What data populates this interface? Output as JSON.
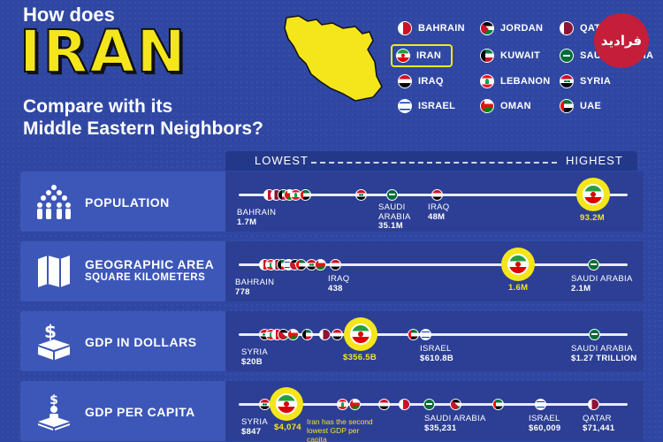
{
  "title": {
    "line1": "How does",
    "big": "IRAN",
    "line3": "Compare with its",
    "line4": "Middle Eastern Neighbors?"
  },
  "logo_text": "فرادید",
  "legend": [
    {
      "name": "BAHRAIN",
      "flag": "f-bahrain"
    },
    {
      "name": "JORDAN",
      "flag": "f-jordan"
    },
    {
      "name": "QATAR",
      "flag": "f-qatar"
    },
    {
      "name": "IRAN",
      "flag": "f-iran"
    },
    {
      "name": "KUWAIT",
      "flag": "f-kuwait"
    },
    {
      "name": "SAUDI ARABIA",
      "flag": "f-saudi"
    },
    {
      "name": "IRAQ",
      "flag": "f-iraq"
    },
    {
      "name": "LEBANON",
      "flag": "f-lebanon"
    },
    {
      "name": "SYRIA",
      "flag": "f-syria"
    },
    {
      "name": "ISRAEL",
      "flag": "f-israel"
    },
    {
      "name": "OMAN",
      "flag": "f-oman"
    },
    {
      "name": "UAE",
      "flag": "f-uae"
    }
  ],
  "scale": {
    "lowest": "LOWEST",
    "highest": "HIGHEST"
  },
  "rows": [
    {
      "title": "POPULATION",
      "subtitle": "",
      "icon": "people-icon",
      "labels": [
        {
          "name": "BAHRAIN",
          "value": "1.7M"
        },
        {
          "name": "SAUDI ARABIA",
          "value": "35.1M"
        },
        {
          "name": "IRAQ",
          "value": "48M"
        },
        {
          "name": "",
          "value": "93.2M"
        }
      ]
    },
    {
      "title": "GEOGRAPHIC AREA",
      "subtitle": "SQUARE KILOMETERS",
      "icon": "map-icon",
      "labels": [
        {
          "name": "BAHRAIN",
          "value": "778"
        },
        {
          "name": "IRAQ",
          "value": "438"
        },
        {
          "name": "",
          "value": "1.6M"
        },
        {
          "name": "SAUDI ARABIA",
          "value": "2.1M"
        }
      ]
    },
    {
      "title": "GDP IN DOLLARS",
      "subtitle": "",
      "icon": "money-box-icon",
      "labels": [
        {
          "name": "SYRIA",
          "value": "$20B"
        },
        {
          "name": "",
          "value": "$356.5B"
        },
        {
          "name": "ISRAEL",
          "value": "$610.8B"
        },
        {
          "name": "SAUDI ARABIA",
          "value": "$1.27 TRILLION"
        }
      ]
    },
    {
      "title": "GDP PER CAPITA",
      "subtitle": "",
      "icon": "person-money-icon",
      "note": "Iran has the second lowest GDP per capita",
      "labels": [
        {
          "name": "SYRIA",
          "value": "$847"
        },
        {
          "name": "",
          "value": "$4,074"
        },
        {
          "name": "SAUDI ARABIA",
          "value": "$35,231"
        },
        {
          "name": "ISRAEL",
          "value": "$60,009"
        },
        {
          "name": "QATAR",
          "value": "$71,441"
        }
      ]
    }
  ],
  "colors": {
    "background": "#2f47a3",
    "accent": "#f5e61b",
    "row": "#3d57b8",
    "track": "#2c3f94"
  }
}
